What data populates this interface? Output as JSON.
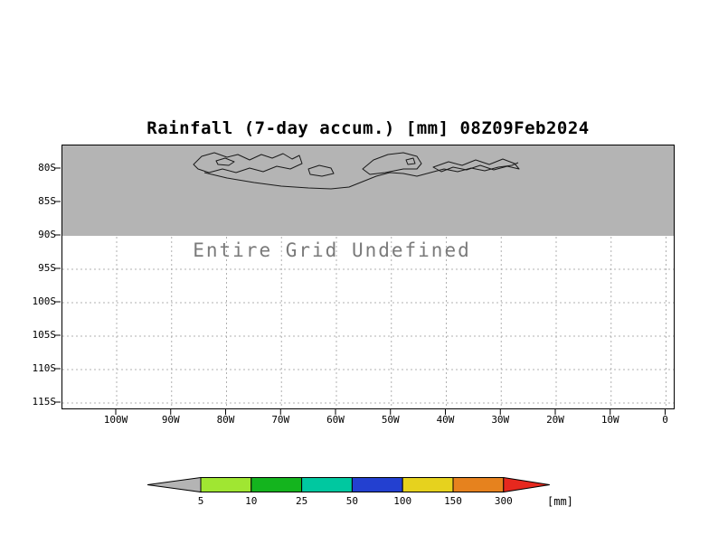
{
  "figure": {
    "title": "Rainfall (7-day accum.) [mm] 08Z09Feb2024",
    "undefined_text": "Entire Grid Undefined"
  },
  "axes": {
    "y_ticks": [
      "80S",
      "85S",
      "90S",
      "95S",
      "100S",
      "105S",
      "110S",
      "115S"
    ],
    "x_ticks": [
      "100W",
      "90W",
      "80W",
      "70W",
      "60W",
      "50W",
      "40W",
      "30W",
      "20W",
      "10W",
      "0"
    ]
  },
  "colorbar": {
    "labels": [
      "5",
      "10",
      "25",
      "50",
      "100",
      "150",
      "300"
    ],
    "units_label": "[mm]",
    "below_color": "#b4b4b4",
    "segment_colors": [
      "#a0e632",
      "#14b41e",
      "#00c8a0",
      "#2340d0",
      "#e6d21e",
      "#e6821e"
    ],
    "above_color": "#e6281e"
  },
  "colors": {
    "shaded_region": "#b4b4b4",
    "grid_line": "#b0b0b0",
    "undefined_text": "#7a7a7a"
  },
  "chart_data": {
    "type": "heatmap",
    "title": "Rainfall (7-day accum.) [mm] 08Z09Feb2024",
    "x_axis": {
      "ticks": [
        "100W",
        "90W",
        "80W",
        "70W",
        "60W",
        "50W",
        "40W",
        "30W",
        "20W",
        "10W",
        "0"
      ]
    },
    "y_axis": {
      "ticks": [
        "80S",
        "85S",
        "90S",
        "95S",
        "100S",
        "105S",
        "110S",
        "115S"
      ]
    },
    "values": null,
    "data_status": "Entire Grid Undefined",
    "shaded_no_data_region": {
      "from_y": "top",
      "to_y": "90S"
    },
    "colorbar": {
      "levels": [
        5,
        10,
        25,
        50,
        100,
        150,
        300
      ],
      "units": "[mm]",
      "position": "bottom"
    },
    "grid": "dotted"
  }
}
